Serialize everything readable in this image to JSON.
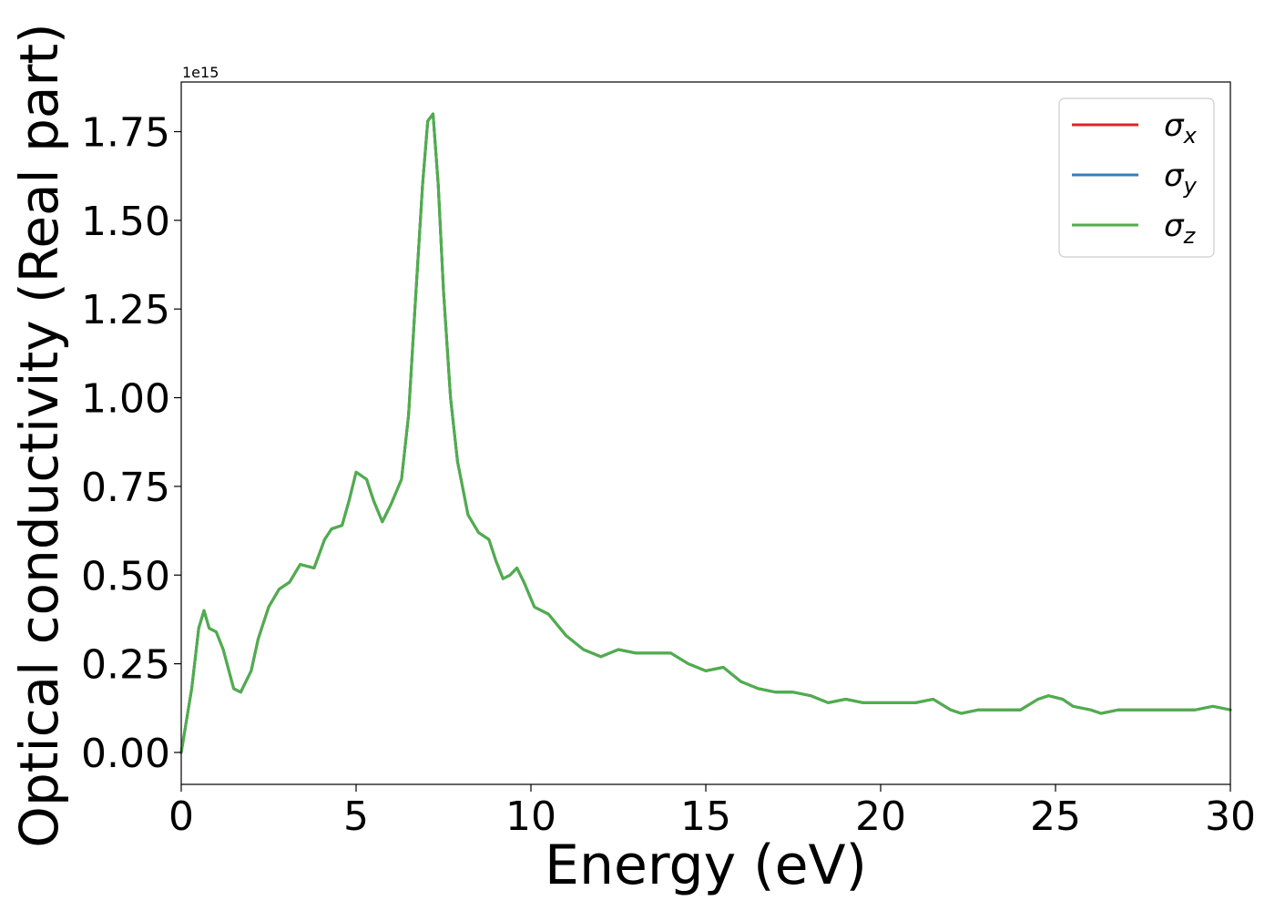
{
  "chart_data": {
    "type": "line",
    "xlabel": "Energy (eV)",
    "ylabel": "Optical conductivity (Real part)",
    "offset_text": "1e15",
    "xlim": [
      0,
      30
    ],
    "ylim": [
      -0.09,
      1.89
    ],
    "xticks": [
      0,
      5,
      10,
      15,
      20,
      25,
      30
    ],
    "xtick_labels": [
      "0",
      "5",
      "10",
      "15",
      "20",
      "25",
      "30"
    ],
    "yticks": [
      0.0,
      0.25,
      0.5,
      0.75,
      1.0,
      1.25,
      1.5,
      1.75
    ],
    "ytick_labels": [
      "0.00",
      "0.25",
      "0.50",
      "0.75",
      "1.00",
      "1.25",
      "1.50",
      "1.75"
    ],
    "grid": false,
    "legend_position": "top-right",
    "x": [
      0,
      0.3,
      0.5,
      0.65,
      0.8,
      1.0,
      1.2,
      1.5,
      1.7,
      2.0,
      2.2,
      2.5,
      2.8,
      3.1,
      3.4,
      3.8,
      4.1,
      4.3,
      4.6,
      4.8,
      5.0,
      5.3,
      5.5,
      5.75,
      6.0,
      6.3,
      6.5,
      6.7,
      6.9,
      7.05,
      7.2,
      7.35,
      7.5,
      7.7,
      7.9,
      8.2,
      8.5,
      8.8,
      9.0,
      9.2,
      9.4,
      9.6,
      9.8,
      10.1,
      10.5,
      11.0,
      11.5,
      12.0,
      12.5,
      13.0,
      13.5,
      14.0,
      14.5,
      15.0,
      15.5,
      16.0,
      16.5,
      17.0,
      17.5,
      18.0,
      18.5,
      19.0,
      19.5,
      20.0,
      20.5,
      21.0,
      21.5,
      22.0,
      22.3,
      22.8,
      23.5,
      24.0,
      24.5,
      24.8,
      25.2,
      25.5,
      26.0,
      26.3,
      26.8,
      27.5,
      28.0,
      28.5,
      29.0,
      29.5,
      30.0
    ],
    "series": [
      {
        "name": "σ_x",
        "label_main": "σ",
        "label_sub": "x",
        "color": "#d62728",
        "values": [
          0.0,
          0.18,
          0.35,
          0.4,
          0.35,
          0.34,
          0.29,
          0.18,
          0.17,
          0.23,
          0.32,
          0.41,
          0.46,
          0.48,
          0.53,
          0.52,
          0.6,
          0.63,
          0.64,
          0.71,
          0.79,
          0.77,
          0.71,
          0.65,
          0.7,
          0.77,
          0.95,
          1.28,
          1.6,
          1.78,
          1.8,
          1.6,
          1.3,
          1.0,
          0.82,
          0.67,
          0.62,
          0.6,
          0.54,
          0.49,
          0.5,
          0.52,
          0.48,
          0.41,
          0.39,
          0.33,
          0.29,
          0.27,
          0.29,
          0.28,
          0.28,
          0.28,
          0.25,
          0.23,
          0.24,
          0.2,
          0.18,
          0.17,
          0.17,
          0.16,
          0.14,
          0.15,
          0.14,
          0.14,
          0.14,
          0.14,
          0.15,
          0.12,
          0.11,
          0.12,
          0.12,
          0.12,
          0.15,
          0.16,
          0.15,
          0.13,
          0.12,
          0.11,
          0.12,
          0.12,
          0.12,
          0.12,
          0.12,
          0.13,
          0.12
        ]
      },
      {
        "name": "σ_y",
        "label_main": "σ",
        "label_sub": "y",
        "color": "#377eb8",
        "values": [
          0.0,
          0.18,
          0.35,
          0.4,
          0.35,
          0.34,
          0.29,
          0.18,
          0.17,
          0.23,
          0.32,
          0.41,
          0.46,
          0.48,
          0.53,
          0.52,
          0.6,
          0.63,
          0.64,
          0.71,
          0.79,
          0.77,
          0.71,
          0.65,
          0.7,
          0.77,
          0.95,
          1.28,
          1.6,
          1.78,
          1.8,
          1.6,
          1.3,
          1.0,
          0.82,
          0.67,
          0.62,
          0.6,
          0.54,
          0.49,
          0.5,
          0.52,
          0.48,
          0.41,
          0.39,
          0.33,
          0.29,
          0.27,
          0.29,
          0.28,
          0.28,
          0.28,
          0.25,
          0.23,
          0.24,
          0.2,
          0.18,
          0.17,
          0.17,
          0.16,
          0.14,
          0.15,
          0.14,
          0.14,
          0.14,
          0.14,
          0.15,
          0.12,
          0.11,
          0.12,
          0.12,
          0.12,
          0.15,
          0.16,
          0.15,
          0.13,
          0.12,
          0.11,
          0.12,
          0.12,
          0.12,
          0.12,
          0.12,
          0.13,
          0.12
        ]
      },
      {
        "name": "σ_z",
        "label_main": "σ",
        "label_sub": "z",
        "color": "#4daf4a",
        "values": [
          0.0,
          0.18,
          0.35,
          0.4,
          0.35,
          0.34,
          0.29,
          0.18,
          0.17,
          0.23,
          0.32,
          0.41,
          0.46,
          0.48,
          0.53,
          0.52,
          0.6,
          0.63,
          0.64,
          0.71,
          0.79,
          0.77,
          0.71,
          0.65,
          0.7,
          0.77,
          0.95,
          1.28,
          1.6,
          1.78,
          1.8,
          1.6,
          1.3,
          1.0,
          0.82,
          0.67,
          0.62,
          0.6,
          0.54,
          0.49,
          0.5,
          0.52,
          0.48,
          0.41,
          0.39,
          0.33,
          0.29,
          0.27,
          0.29,
          0.28,
          0.28,
          0.28,
          0.25,
          0.23,
          0.24,
          0.2,
          0.18,
          0.17,
          0.17,
          0.16,
          0.14,
          0.15,
          0.14,
          0.14,
          0.14,
          0.14,
          0.15,
          0.12,
          0.11,
          0.12,
          0.12,
          0.12,
          0.15,
          0.16,
          0.15,
          0.13,
          0.12,
          0.11,
          0.12,
          0.12,
          0.12,
          0.12,
          0.12,
          0.13,
          0.12
        ]
      }
    ]
  }
}
